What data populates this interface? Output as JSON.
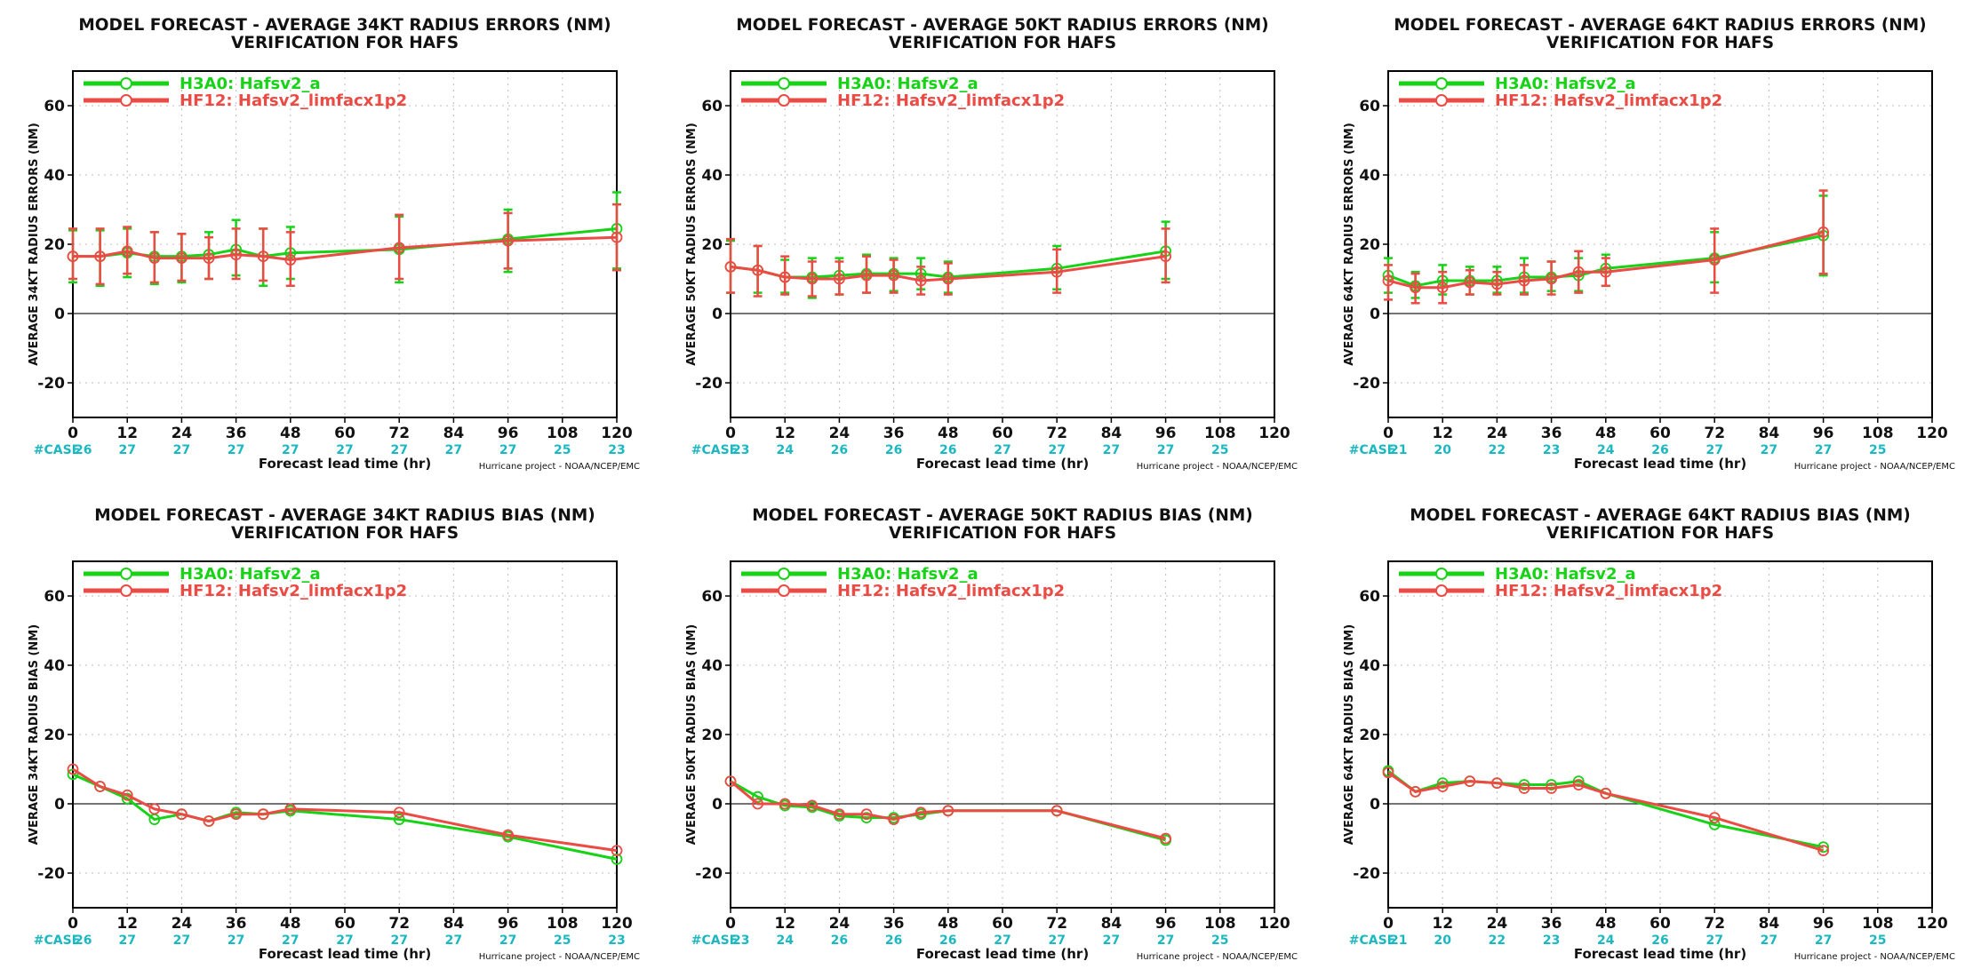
{
  "x_axis": {
    "ticks": [
      0,
      12,
      24,
      36,
      48,
      60,
      72,
      84,
      96,
      108,
      120
    ],
    "xlim": [
      0,
      120
    ],
    "label": "Forecast lead time (hr)",
    "case_label": "#CASE",
    "case_ticks": [
      0,
      12,
      24,
      36,
      48,
      60,
      72,
      84,
      96,
      108,
      120
    ]
  },
  "y_axis": {
    "ylim": [
      -30,
      70
    ],
    "ticks": [
      -20,
      0,
      20,
      40,
      60
    ]
  },
  "credit": "Hurricane project - NOAA/NCEP/EMC",
  "colors": {
    "H3A0": "#17d217",
    "HF12": "#ec4a44",
    "case": "#1bb8c2",
    "grid": "#bcbcbc"
  },
  "legend": {
    "entries": [
      {
        "key": "H3A0",
        "label": "H3A0: Hafsv2_a"
      },
      {
        "key": "HF12",
        "label": "HF12: Hafsv2_limfacx1p2"
      }
    ]
  },
  "chart_data": [
    {
      "type": "line",
      "title": "MODEL FORECAST - AVERAGE 34KT RADIUS ERRORS (NM)",
      "subtitle": "VERIFICATION FOR HAFS",
      "ylabel": "AVERAGE 34KT RADIUS ERRORS (NM)",
      "xlabel": "Forecast lead time (hr)",
      "cases": [
        26,
        27,
        27,
        27,
        27,
        27,
        27,
        27,
        27,
        25,
        23
      ],
      "error_bars": true,
      "series": [
        {
          "name": "H3A0: Hafsv2_a",
          "key": "H3A0",
          "x": [
            0,
            6,
            12,
            18,
            24,
            30,
            36,
            42,
            48,
            72,
            96,
            120
          ],
          "y": [
            16.5,
            16.5,
            17.5,
            16.5,
            16.5,
            17,
            18.5,
            16.5,
            17.5,
            18.5,
            21.5,
            24.5
          ],
          "lo": [
            9,
            8,
            10.5,
            8.5,
            9,
            10,
            11,
            8,
            10,
            9,
            12,
            13
          ],
          "hi": [
            24,
            24,
            24.5,
            23.5,
            23,
            23.5,
            27,
            24.5,
            25,
            28,
            30,
            35
          ]
        },
        {
          "name": "HF12: Hafsv2_limfacx1p2",
          "key": "HF12",
          "x": [
            0,
            6,
            12,
            18,
            24,
            30,
            36,
            42,
            48,
            72,
            96,
            120
          ],
          "y": [
            16.5,
            16.5,
            18,
            16,
            16,
            16,
            17,
            16.5,
            15.5,
            19,
            21,
            22
          ],
          "lo": [
            10,
            8.5,
            11.5,
            9,
            9.5,
            10,
            10,
            9.5,
            8,
            10,
            13,
            12.5
          ],
          "hi": [
            24.5,
            24.5,
            25,
            23.5,
            23,
            22,
            24.5,
            24.5,
            23.5,
            28.5,
            29,
            31.5
          ]
        }
      ]
    },
    {
      "type": "line",
      "title": "MODEL FORECAST - AVERAGE 50KT RADIUS ERRORS (NM)",
      "subtitle": "VERIFICATION FOR HAFS",
      "ylabel": "AVERAGE 50KT RADIUS ERRORS (NM)",
      "xlabel": "Forecast lead time (hr)",
      "cases": [
        23,
        24,
        26,
        26,
        26,
        27,
        27,
        27,
        27,
        25,
        null
      ],
      "error_bars": true,
      "series": [
        {
          "name": "H3A0: Hafsv2_a",
          "key": "H3A0",
          "x": [
            0,
            6,
            12,
            18,
            24,
            30,
            36,
            42,
            48,
            72,
            96
          ],
          "y": [
            13.5,
            12.5,
            10.5,
            10.5,
            11,
            11.5,
            11.5,
            11.5,
            10.5,
            13,
            18
          ],
          "lo": [
            6,
            6,
            6,
            4.5,
            5.5,
            6,
            6.5,
            7,
            6,
            7,
            10
          ],
          "hi": [
            21,
            19.5,
            15.5,
            16,
            16,
            17,
            16,
            16,
            15,
            19.5,
            26.5
          ]
        },
        {
          "name": "HF12: Hafsv2_limfacx1p2",
          "key": "HF12",
          "x": [
            0,
            6,
            12,
            18,
            24,
            30,
            36,
            42,
            48,
            72,
            96
          ],
          "y": [
            13.5,
            12.5,
            10.5,
            10,
            10,
            11,
            11,
            9.5,
            10,
            12,
            16.5
          ],
          "lo": [
            6,
            5,
            5.5,
            5,
            5.5,
            6,
            6,
            5.5,
            5.5,
            6,
            9
          ],
          "hi": [
            21.5,
            19.5,
            16.5,
            15,
            15,
            16.5,
            15.5,
            13.5,
            14.5,
            18.5,
            24.5
          ]
        }
      ]
    },
    {
      "type": "line",
      "title": "MODEL FORECAST - AVERAGE 64KT RADIUS ERRORS (NM)",
      "subtitle": "VERIFICATION FOR HAFS",
      "ylabel": "AVERAGE 64KT RADIUS ERRORS (NM)",
      "xlabel": "Forecast lead time (hr)",
      "cases": [
        21,
        20,
        22,
        23,
        24,
        26,
        27,
        27,
        27,
        25,
        null
      ],
      "error_bars": true,
      "series": [
        {
          "name": "H3A0: Hafsv2_a",
          "key": "H3A0",
          "x": [
            0,
            6,
            12,
            18,
            24,
            30,
            36,
            42,
            48,
            72,
            96
          ],
          "y": [
            11,
            8,
            9.5,
            9.5,
            9.5,
            10.5,
            10.5,
            11,
            13,
            16,
            22.5
          ],
          "lo": [
            6,
            4.5,
            5.5,
            5.5,
            6,
            6,
            6.5,
            6.5,
            8,
            9,
            11
          ],
          "hi": [
            16,
            12,
            14,
            13.5,
            13.5,
            16,
            15,
            16,
            17,
            23.5,
            34
          ]
        },
        {
          "name": "HF12: Hafsv2_limfacx1p2",
          "key": "HF12",
          "x": [
            0,
            6,
            12,
            18,
            24,
            30,
            36,
            42,
            48,
            72,
            96
          ],
          "y": [
            9.5,
            7.5,
            7.5,
            9,
            8.5,
            9.5,
            10,
            12,
            12,
            15.5,
            23.5
          ],
          "lo": [
            4,
            3,
            3,
            5.5,
            5.5,
            5.5,
            5.5,
            6,
            8,
            6,
            11.5
          ],
          "hi": [
            14,
            11.5,
            12,
            12.5,
            12,
            14,
            15,
            18,
            16,
            24.5,
            35.5
          ]
        }
      ]
    },
    {
      "type": "line",
      "title": "MODEL FORECAST - AVERAGE 34KT RADIUS BIAS (NM)",
      "subtitle": "VERIFICATION FOR HAFS",
      "ylabel": "AVERAGE 34KT RADIUS BIAS (NM)",
      "xlabel": "Forecast lead time (hr)",
      "cases": [
        26,
        27,
        27,
        27,
        27,
        27,
        27,
        27,
        27,
        25,
        23
      ],
      "error_bars": false,
      "series": [
        {
          "name": "H3A0: Hafsv2_a",
          "key": "H3A0",
          "x": [
            0,
            6,
            12,
            18,
            24,
            30,
            36,
            42,
            48,
            72,
            96,
            120
          ],
          "y": [
            8.5,
            5,
            1.5,
            -4.5,
            -3,
            -5,
            -2.5,
            -3,
            -2,
            -4.5,
            -9.5,
            -16
          ]
        },
        {
          "name": "HF12: Hafsv2_limfacx1p2",
          "key": "HF12",
          "x": [
            0,
            6,
            12,
            18,
            24,
            30,
            36,
            42,
            48,
            72,
            96,
            120
          ],
          "y": [
            10,
            5,
            2.5,
            -1.5,
            -3,
            -5,
            -3,
            -3,
            -1.5,
            -2.5,
            -9,
            -13.5
          ]
        }
      ]
    },
    {
      "type": "line",
      "title": "MODEL FORECAST - AVERAGE 50KT RADIUS BIAS (NM)",
      "subtitle": "VERIFICATION FOR HAFS",
      "ylabel": "AVERAGE 50KT RADIUS BIAS (NM)",
      "xlabel": "Forecast lead time (hr)",
      "cases": [
        23,
        24,
        26,
        26,
        26,
        27,
        27,
        27,
        27,
        25,
        null
      ],
      "error_bars": false,
      "series": [
        {
          "name": "H3A0: Hafsv2_a",
          "key": "H3A0",
          "x": [
            0,
            6,
            12,
            18,
            24,
            30,
            36,
            42,
            48,
            72,
            96
          ],
          "y": [
            6.5,
            2,
            -0.5,
            -1,
            -3.5,
            -4,
            -4,
            -3,
            -2,
            -2,
            -10.5
          ]
        },
        {
          "name": "HF12: Hafsv2_limfacx1p2",
          "key": "HF12",
          "x": [
            0,
            6,
            12,
            18,
            24,
            30,
            36,
            42,
            48,
            72,
            96
          ],
          "y": [
            6.5,
            0,
            0,
            -0.5,
            -3,
            -3,
            -4.5,
            -2.5,
            -2,
            -2,
            -10
          ]
        }
      ]
    },
    {
      "type": "line",
      "title": "MODEL FORECAST - AVERAGE 64KT RADIUS BIAS (NM)",
      "subtitle": "VERIFICATION FOR HAFS",
      "ylabel": "AVERAGE 64KT RADIUS BIAS (NM)",
      "xlabel": "Forecast lead time (hr)",
      "cases": [
        21,
        20,
        22,
        23,
        24,
        26,
        27,
        27,
        27,
        25,
        null
      ],
      "error_bars": false,
      "series": [
        {
          "name": "H3A0: Hafsv2_a",
          "key": "H3A0",
          "x": [
            0,
            6,
            12,
            18,
            24,
            30,
            36,
            42,
            48,
            72,
            96
          ],
          "y": [
            9.5,
            3.5,
            6,
            6.5,
            6,
            5.5,
            5.5,
            6.5,
            3,
            -6,
            -12.5
          ]
        },
        {
          "name": "HF12: Hafsv2_limfacx1p2",
          "key": "HF12",
          "x": [
            0,
            6,
            12,
            18,
            24,
            30,
            36,
            42,
            48,
            72,
            96
          ],
          "y": [
            9,
            3.5,
            5,
            6.5,
            6,
            4.5,
            4.5,
            5.5,
            3,
            -4,
            -13.5
          ]
        }
      ]
    }
  ]
}
